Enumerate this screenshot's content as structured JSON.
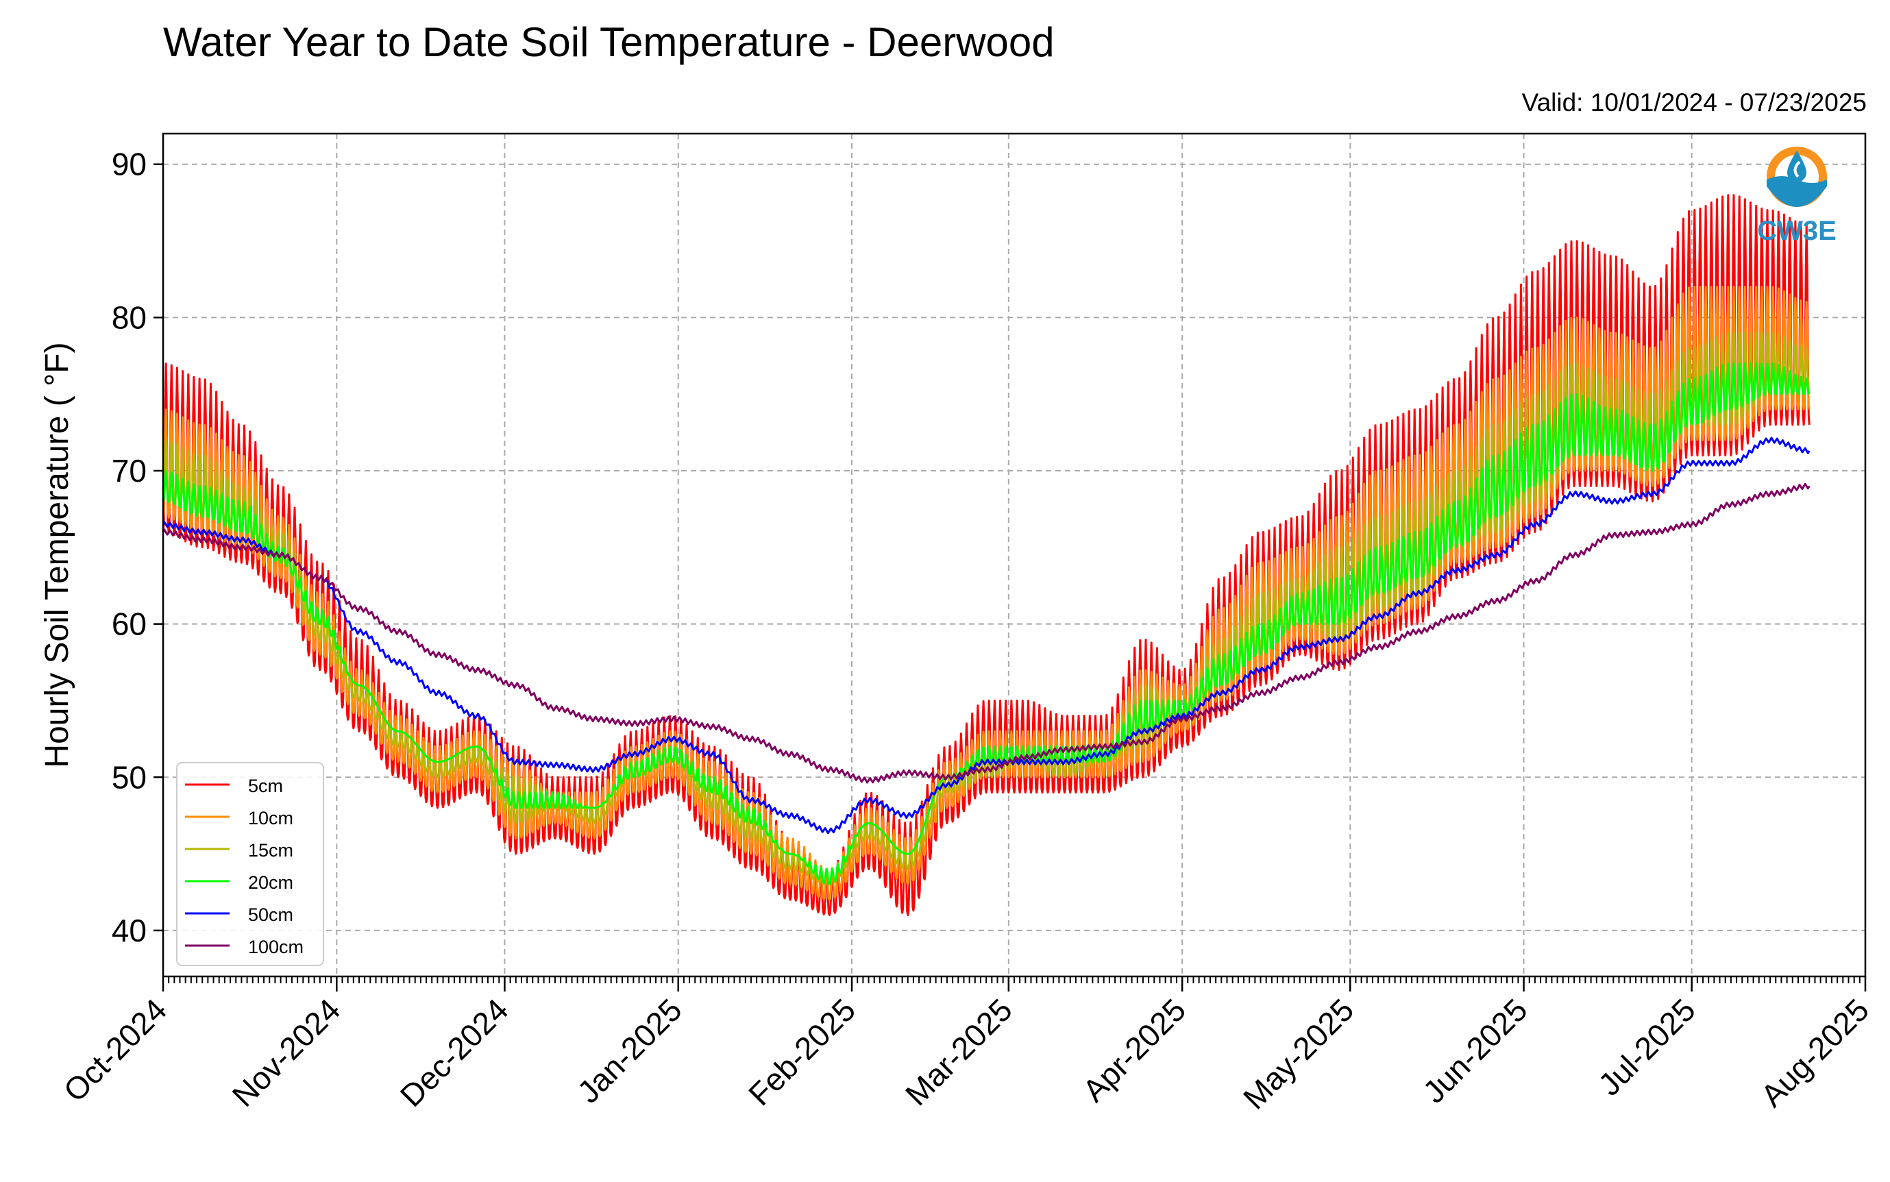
{
  "chart_data": {
    "type": "line",
    "title": "Water Year to Date Soil Temperature - Deerwood",
    "subtitle": "Valid: 10/01/2024 - 07/23/2025",
    "xlabel": "",
    "ylabel": "Hourly Soil Temperature ( °F)",
    "xlim": [
      "2024-10-01",
      "2025-08-01"
    ],
    "ylim": [
      37,
      92
    ],
    "yticks": [
      40,
      50,
      60,
      70,
      80,
      90
    ],
    "xticks": [
      {
        "date": "2024-10-01",
        "label": "Oct-2024"
      },
      {
        "date": "2024-11-01",
        "label": "Nov-2024"
      },
      {
        "date": "2024-12-01",
        "label": "Dec-2024"
      },
      {
        "date": "2025-01-01",
        "label": "Jan-2025"
      },
      {
        "date": "2025-02-01",
        "label": "Feb-2025"
      },
      {
        "date": "2025-03-01",
        "label": "Mar-2025"
      },
      {
        "date": "2025-04-01",
        "label": "Apr-2025"
      },
      {
        "date": "2025-05-01",
        "label": "May-2025"
      },
      {
        "date": "2025-06-01",
        "label": "Jun-2025"
      },
      {
        "date": "2025-07-01",
        "label": "Jul-2025"
      },
      {
        "date": "2025-08-01",
        "label": "Aug-2025"
      }
    ],
    "grid": true,
    "legend_position": "lower-left",
    "logo_text": "CW3E",
    "series": [
      {
        "name": "5cm",
        "color": "#ff0000",
        "x": [
          "2024-10-01",
          "2024-10-08",
          "2024-10-15",
          "2024-10-22",
          "2024-10-29",
          "2024-11-05",
          "2024-11-12",
          "2024-11-19",
          "2024-11-26",
          "2024-12-03",
          "2024-12-10",
          "2024-12-17",
          "2024-12-24",
          "2024-12-31",
          "2025-01-07",
          "2025-01-14",
          "2025-01-21",
          "2025-01-28",
          "2025-02-04",
          "2025-02-11",
          "2025-02-18",
          "2025-02-25",
          "2025-03-04",
          "2025-03-11",
          "2025-03-18",
          "2025-03-25",
          "2025-04-01",
          "2025-04-08",
          "2025-04-15",
          "2025-04-22",
          "2025-04-29",
          "2025-05-06",
          "2025-05-13",
          "2025-05-20",
          "2025-05-27",
          "2025-06-03",
          "2025-06-10",
          "2025-06-17",
          "2025-06-24",
          "2025-07-01",
          "2025-07-08",
          "2025-07-15",
          "2025-07-22"
        ],
        "min": [
          66,
          65,
          64,
          62,
          57,
          53,
          50,
          48,
          49,
          45,
          46,
          45,
          48,
          49,
          46,
          44,
          42,
          41,
          44,
          41,
          47,
          49,
          49,
          49,
          49,
          50,
          52,
          54,
          56,
          58,
          57,
          59,
          60,
          63,
          64,
          66,
          69,
          69,
          68,
          71,
          71,
          73,
          73
        ],
        "max": [
          77,
          76,
          73,
          69,
          64,
          59,
          55,
          53,
          54,
          52,
          50,
          50,
          53,
          54,
          52,
          50,
          46,
          44,
          49,
          47,
          52,
          55,
          55,
          54,
          54,
          59,
          57,
          63,
          66,
          67,
          70,
          73,
          74,
          76,
          80,
          83,
          85,
          84,
          82,
          87,
          88,
          87,
          86
        ]
      },
      {
        "name": "10cm",
        "color": "#ff8c00",
        "x": [
          "2024-10-01",
          "2024-10-08",
          "2024-10-15",
          "2024-10-22",
          "2024-10-29",
          "2024-11-05",
          "2024-11-12",
          "2024-11-19",
          "2024-11-26",
          "2024-12-03",
          "2024-12-10",
          "2024-12-17",
          "2024-12-24",
          "2024-12-31",
          "2025-01-07",
          "2025-01-14",
          "2025-01-21",
          "2025-01-28",
          "2025-02-04",
          "2025-02-11",
          "2025-02-18",
          "2025-02-25",
          "2025-03-04",
          "2025-03-11",
          "2025-03-18",
          "2025-03-25",
          "2025-04-01",
          "2025-04-08",
          "2025-04-15",
          "2025-04-22",
          "2025-04-29",
          "2025-05-06",
          "2025-05-13",
          "2025-05-20",
          "2025-05-27",
          "2025-06-03",
          "2025-06-10",
          "2025-06-17",
          "2025-06-24",
          "2025-07-01",
          "2025-07-08",
          "2025-07-15",
          "2025-07-22"
        ],
        "min": [
          67,
          66,
          65,
          63,
          58,
          54,
          51,
          49,
          50,
          46,
          47,
          46,
          49,
          50,
          47,
          45,
          43,
          42,
          45,
          43,
          48,
          50,
          50,
          50,
          50,
          51,
          53,
          55,
          57,
          59,
          58,
          60,
          61,
          64,
          65,
          67,
          70,
          70,
          69,
          72,
          72,
          74,
          74
        ],
        "max": [
          74,
          73,
          71,
          67,
          62,
          57,
          54,
          52,
          53,
          51,
          49,
          49,
          52,
          53,
          51,
          49,
          46,
          44,
          48,
          46,
          51,
          53,
          53,
          53,
          53,
          57,
          56,
          61,
          64,
          65,
          67,
          70,
          71,
          73,
          76,
          78,
          80,
          79,
          78,
          82,
          82,
          82,
          81
        ]
      },
      {
        "name": "15cm",
        "color": "#b5b800",
        "x": [
          "2024-10-01",
          "2024-10-08",
          "2024-10-15",
          "2024-10-22",
          "2024-10-29",
          "2024-11-05",
          "2024-11-12",
          "2024-11-19",
          "2024-11-26",
          "2024-12-03",
          "2024-12-10",
          "2024-12-17",
          "2024-12-24",
          "2024-12-31",
          "2025-01-07",
          "2025-01-14",
          "2025-01-21",
          "2025-01-28",
          "2025-02-04",
          "2025-02-11",
          "2025-02-18",
          "2025-02-25",
          "2025-03-04",
          "2025-03-11",
          "2025-03-18",
          "2025-03-25",
          "2025-04-01",
          "2025-04-08",
          "2025-04-15",
          "2025-04-22",
          "2025-04-29",
          "2025-05-06",
          "2025-05-13",
          "2025-05-20",
          "2025-05-27",
          "2025-06-03",
          "2025-06-10",
          "2025-06-17",
          "2025-06-24",
          "2025-07-01",
          "2025-07-08",
          "2025-07-15",
          "2025-07-22"
        ],
        "min": [
          68,
          67,
          66,
          64,
          59,
          55,
          52,
          50,
          51,
          47,
          48,
          47,
          50,
          51,
          48,
          46,
          44,
          43,
          46,
          44,
          49,
          50,
          51,
          50,
          51,
          52,
          54,
          56,
          58,
          60,
          59,
          61,
          62,
          65,
          66,
          68,
          71,
          71,
          70,
          73,
          73,
          75,
          75
        ],
        "max": [
          72,
          71,
          69,
          66,
          61,
          56,
          53,
          51,
          52,
          50,
          49,
          48,
          51,
          52,
          50,
          48,
          45,
          44,
          47,
          45,
          50,
          52,
          52,
          52,
          52,
          56,
          55,
          59,
          62,
          63,
          65,
          67,
          68,
          70,
          73,
          75,
          77,
          76,
          75,
          78,
          79,
          79,
          78
        ]
      },
      {
        "name": "20cm",
        "color": "#00ff00",
        "x": [
          "2024-10-01",
          "2024-10-08",
          "2024-10-15",
          "2024-10-22",
          "2024-10-29",
          "2024-11-05",
          "2024-11-12",
          "2024-11-19",
          "2024-11-26",
          "2024-12-03",
          "2024-12-10",
          "2024-12-17",
          "2024-12-24",
          "2024-12-31",
          "2025-01-07",
          "2025-01-14",
          "2025-01-21",
          "2025-01-28",
          "2025-02-04",
          "2025-02-11",
          "2025-02-18",
          "2025-02-25",
          "2025-03-04",
          "2025-03-11",
          "2025-03-18",
          "2025-03-25",
          "2025-04-01",
          "2025-04-08",
          "2025-04-15",
          "2025-04-22",
          "2025-04-29",
          "2025-05-06",
          "2025-05-13",
          "2025-05-20",
          "2025-05-27",
          "2025-06-03",
          "2025-06-10",
          "2025-06-17",
          "2025-06-24",
          "2025-07-01",
          "2025-07-08",
          "2025-07-15",
          "2025-07-22"
        ],
        "min": [
          68,
          67,
          66,
          64,
          60,
          56,
          53,
          51,
          52,
          48,
          48,
          48,
          50,
          51,
          49,
          47,
          45,
          43,
          47,
          45,
          50,
          51,
          51,
          51,
          51,
          53,
          54,
          56,
          58,
          60,
          60,
          62,
          63,
          65,
          67,
          69,
          71,
          71,
          70,
          73,
          74,
          75,
          75
        ],
        "max": [
          70,
          69,
          68,
          65,
          61,
          56,
          53,
          51,
          52,
          49,
          49,
          48,
          51,
          52,
          50,
          48,
          45,
          44,
          47,
          45,
          50,
          52,
          52,
          52,
          52,
          55,
          55,
          58,
          60,
          62,
          63,
          65,
          66,
          68,
          71,
          73,
          75,
          74,
          73,
          76,
          77,
          77,
          76
        ]
      },
      {
        "name": "50cm",
        "color": "#0000ff",
        "x": [
          "2024-10-01",
          "2024-10-08",
          "2024-10-15",
          "2024-10-22",
          "2024-10-29",
          "2024-11-05",
          "2024-11-12",
          "2024-11-19",
          "2024-11-26",
          "2024-12-03",
          "2024-12-10",
          "2024-12-17",
          "2024-12-24",
          "2024-12-31",
          "2025-01-07",
          "2025-01-14",
          "2025-01-21",
          "2025-01-28",
          "2025-02-04",
          "2025-02-11",
          "2025-02-18",
          "2025-02-25",
          "2025-03-04",
          "2025-03-11",
          "2025-03-18",
          "2025-03-25",
          "2025-04-01",
          "2025-04-08",
          "2025-04-15",
          "2025-04-22",
          "2025-04-29",
          "2025-05-06",
          "2025-05-13",
          "2025-05-20",
          "2025-05-27",
          "2025-06-03",
          "2025-06-10",
          "2025-06-17",
          "2025-06-24",
          "2025-07-01",
          "2025-07-08",
          "2025-07-15",
          "2025-07-22"
        ],
        "y": [
          66.5,
          66.0,
          65.5,
          64.5,
          63.0,
          59.5,
          57.5,
          55.5,
          54.0,
          51.0,
          50.8,
          50.5,
          51.5,
          52.5,
          51.5,
          48.5,
          47.5,
          46.5,
          48.5,
          47.5,
          49.5,
          51.0,
          51.0,
          51.0,
          51.5,
          53.0,
          54.0,
          55.5,
          57.0,
          58.5,
          59.0,
          60.5,
          62.0,
          63.5,
          64.5,
          66.5,
          68.5,
          68.0,
          68.5,
          70.5,
          70.5,
          72.0,
          71.3
        ]
      },
      {
        "name": "100cm",
        "color": "#800060",
        "x": [
          "2024-10-01",
          "2024-10-08",
          "2024-10-15",
          "2024-10-22",
          "2024-10-29",
          "2024-11-05",
          "2024-11-12",
          "2024-11-19",
          "2024-11-26",
          "2024-12-03",
          "2024-12-10",
          "2024-12-17",
          "2024-12-24",
          "2024-12-31",
          "2025-01-07",
          "2025-01-14",
          "2025-01-21",
          "2025-01-28",
          "2025-02-04",
          "2025-02-11",
          "2025-02-18",
          "2025-02-25",
          "2025-03-04",
          "2025-03-11",
          "2025-03-18",
          "2025-03-25",
          "2025-04-01",
          "2025-04-08",
          "2025-04-15",
          "2025-04-22",
          "2025-04-29",
          "2025-05-06",
          "2025-05-13",
          "2025-05-20",
          "2025-05-27",
          "2025-06-03",
          "2025-06-10",
          "2025-06-17",
          "2025-06-24",
          "2025-07-01",
          "2025-07-08",
          "2025-07-15",
          "2025-07-22"
        ],
        "y": [
          66.0,
          65.5,
          65.0,
          64.5,
          63.0,
          61.0,
          59.5,
          58.0,
          57.0,
          56.0,
          54.5,
          53.8,
          53.5,
          53.8,
          53.3,
          52.5,
          51.5,
          50.5,
          49.8,
          50.3,
          50.0,
          50.5,
          51.3,
          51.8,
          52.0,
          52.3,
          53.8,
          54.5,
          55.5,
          56.5,
          57.5,
          58.5,
          59.5,
          60.5,
          61.5,
          62.8,
          64.5,
          65.8,
          66.0,
          66.5,
          67.8,
          68.5,
          69.0
        ]
      }
    ]
  }
}
